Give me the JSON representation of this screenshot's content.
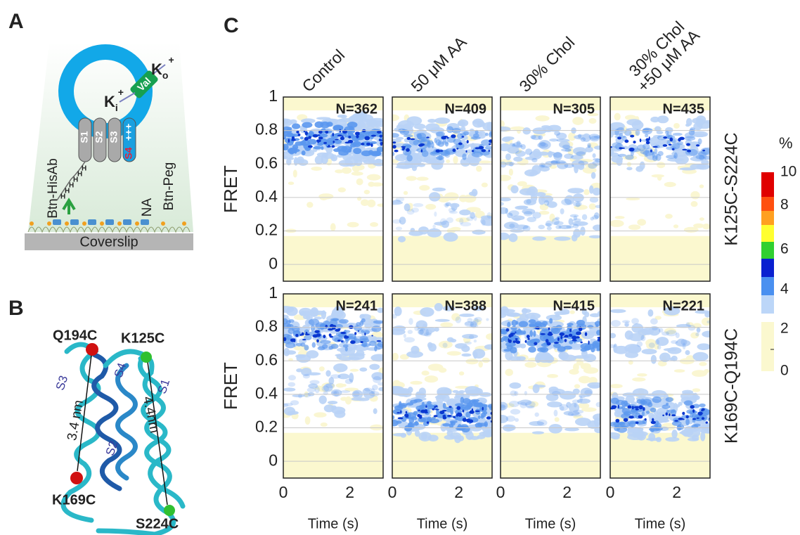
{
  "panel_labels": [
    "A",
    "B",
    "C"
  ],
  "panel_a": {
    "k_out": {
      "base": "K",
      "sub": "o",
      "sup": "+"
    },
    "k_in": {
      "base": "K",
      "sub": "i",
      "sup": "+"
    },
    "valinomycin": "Val",
    "segments": [
      "S1",
      "S2",
      "S3",
      "S4"
    ],
    "charges": "+++",
    "his_tag": [
      "H",
      "H",
      "H",
      "H",
      "H",
      "H"
    ],
    "labels": [
      "Btn-HisAb",
      "NA",
      "Btn-Peg"
    ],
    "surface": "Coverslip"
  },
  "panel_b": {
    "residues": [
      "Q194C",
      "K125C",
      "K169C",
      "S224C"
    ],
    "helices": [
      "S3",
      "S4",
      "S1",
      "S2"
    ],
    "distances": [
      "3.4 nm",
      "4.4nm"
    ]
  },
  "panel_c": {
    "conditions": [
      [
        "Control"
      ],
      [
        "50 μM AA"
      ],
      [
        "30% Chol"
      ],
      [
        "30% Chol",
        "+50 μM AA"
      ]
    ],
    "constructs": [
      "K125C-S224C",
      "K169C-Q194C"
    ],
    "y_label": "FRET",
    "x_label": "Time (s)",
    "yticks": [
      "0",
      "0.2",
      "0.4",
      "0.6",
      "0.8",
      "1"
    ],
    "xticks": [
      "0",
      "2"
    ],
    "counts": [
      [
        "N=362",
        "N=409",
        "N=305",
        "N=435"
      ],
      [
        "N=241",
        "N=388",
        "N=415",
        "N=221"
      ]
    ],
    "colorbar": {
      "title": "%",
      "ticks": [
        "10",
        "8",
        "6",
        "4",
        "2",
        "0"
      ]
    }
  }
}
